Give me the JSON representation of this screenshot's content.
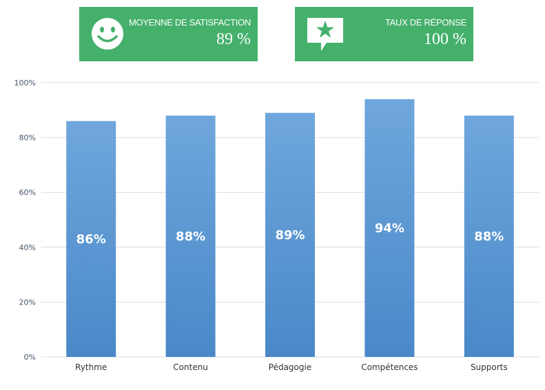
{
  "kpis": {
    "satisfaction": {
      "label": "MOYENNE DE SATISFACTION",
      "value": "89 %",
      "icon": "smiley-icon"
    },
    "response": {
      "label": "TAUX DE RÉPONSE",
      "value": "100 %",
      "icon": "star-speech-bubble-icon"
    }
  },
  "colors": {
    "kpi_background": "#45b06c",
    "bar_top": "#6fa7dd",
    "bar_bottom": "#4a88c8",
    "gridline": "#dcdcdc",
    "axis_text": "#44546a"
  },
  "chart_data": {
    "type": "bar",
    "categories": [
      "Rythme",
      "Contenu",
      "Pédagogie",
      "Compétences",
      "Supports"
    ],
    "values": [
      86,
      88,
      89,
      94,
      88
    ],
    "data_labels": [
      "86%",
      "88%",
      "89%",
      "94%",
      "88%"
    ],
    "yticks": [
      "0%",
      "20%",
      "40%",
      "60%",
      "80%",
      "100%"
    ],
    "ylim": [
      0,
      100
    ],
    "grid": true,
    "legend": "none"
  }
}
